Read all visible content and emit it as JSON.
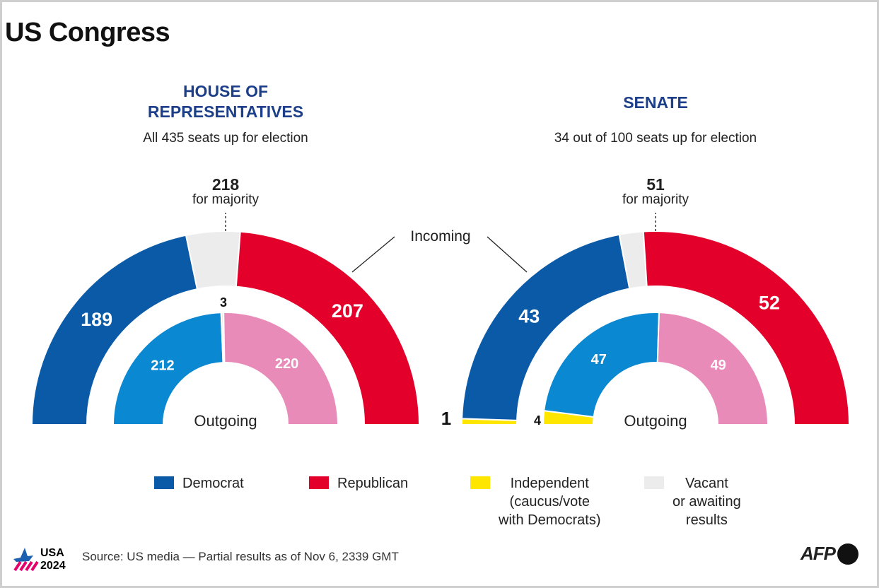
{
  "title": "US Congress",
  "colors": {
    "democrat": "#0a5aa8",
    "democrat_outgoing": "#0a88d1",
    "republican": "#e3002b",
    "republican_outgoing": "#e98bb8",
    "independent": "#ffe600",
    "vacant": "#ececec"
  },
  "chart_data": [
    {
      "type": "pie",
      "subtype": "half-donut",
      "title": "HOUSE OF REPRESENTATIVES",
      "subtitle": "All 435 seats up for election",
      "majority": {
        "value": "218",
        "label": "for majority"
      },
      "incoming": {
        "label": "Incoming",
        "segments": [
          {
            "party": "Democrat",
            "value": 189
          },
          {
            "party": "Vacant",
            "value": 39
          },
          {
            "party": "Republican",
            "value": 207
          }
        ]
      },
      "outgoing": {
        "label": "Outgoing",
        "segments": [
          {
            "party": "Democrat",
            "value": 212
          },
          {
            "party": "Vacant",
            "value": 3
          },
          {
            "party": "Republican",
            "value": 220
          }
        ]
      }
    },
    {
      "type": "pie",
      "subtype": "half-donut",
      "title": "SENATE",
      "subtitle": "34 out of 100 seats up for election",
      "majority": {
        "value": "51",
        "label": "for majority"
      },
      "incoming": {
        "label": "Incoming",
        "segments": [
          {
            "party": "Independent",
            "value": 1
          },
          {
            "party": "Democrat",
            "value": 43
          },
          {
            "party": "Vacant",
            "value": 4
          },
          {
            "party": "Republican",
            "value": 52
          }
        ]
      },
      "outgoing": {
        "label": "Outgoing",
        "segments": [
          {
            "party": "Independent",
            "value": 4
          },
          {
            "party": "Democrat",
            "value": 47
          },
          {
            "party": "Republican",
            "value": 49
          }
        ]
      }
    }
  ],
  "incoming_label": "Incoming",
  "legend": [
    {
      "label": "Democrat",
      "color": "#0a5aa8"
    },
    {
      "label": "Republican",
      "color": "#e3002b"
    },
    {
      "label": "Independent\n(caucus/vote\nwith Democrats)",
      "color": "#ffe600"
    },
    {
      "label": "Vacant\nor awaiting\nresults",
      "color": "#ececec"
    }
  ],
  "footer": {
    "logo": "USA 2024",
    "source": "Source: US media — Partial results as of Nov 6, 2339 GMT",
    "agency": "AFP"
  }
}
